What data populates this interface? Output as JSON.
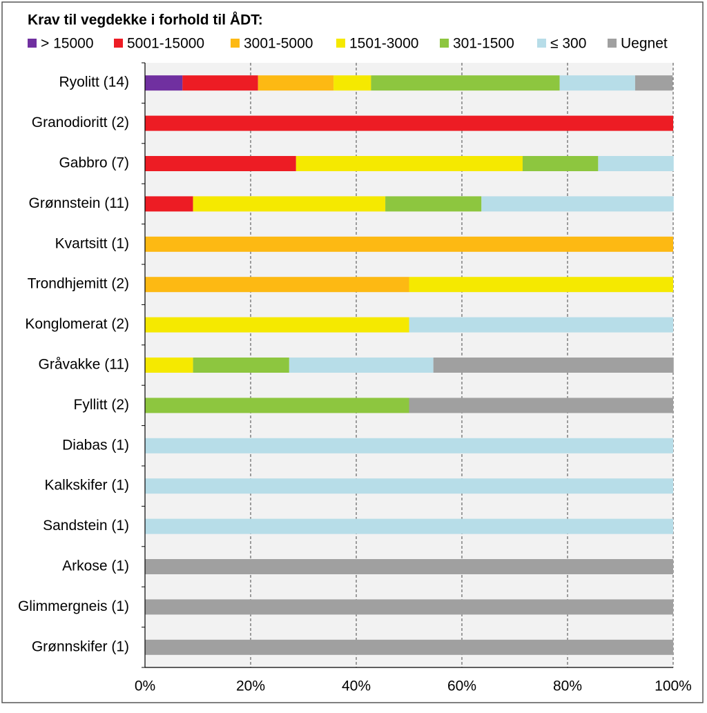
{
  "chart_data": {
    "type": "stacked-barh",
    "title": "Krav til vegdekke i forhold til ÅDT:",
    "categories": [
      "Ryolitt (14)",
      "Granodioritt (2)",
      "Gabbro (7)",
      "Grønnstein (11)",
      "Kvartsitt (1)",
      "Trondhjemitt (2)",
      "Konglomerat (2)",
      "Gråvakke (11)",
      "Fyllitt (2)",
      "Diabas (1)",
      "Kalkskifer (1)",
      "Sandstein (1)",
      "Arkose (1)",
      "Glimmergneis (1)",
      "Grønnskifer (1)"
    ],
    "series": [
      {
        "name": "> 15000",
        "color": "#7030a0",
        "values": [
          7.1,
          0,
          0,
          0,
          0,
          0,
          0,
          0,
          0,
          0,
          0,
          0,
          0,
          0,
          0
        ]
      },
      {
        "name": "5001-15000",
        "color": "#ed1c24",
        "values": [
          14.3,
          100,
          28.6,
          9.1,
          0,
          0,
          0,
          0,
          0,
          0,
          0,
          0,
          0,
          0,
          0
        ]
      },
      {
        "name": "3001-5000",
        "color": "#fdb913",
        "values": [
          14.3,
          0,
          0,
          0,
          100,
          50,
          0,
          0,
          0,
          0,
          0,
          0,
          0,
          0,
          0
        ]
      },
      {
        "name": "1501-3000",
        "color": "#f5e900",
        "values": [
          7.1,
          0,
          42.9,
          36.4,
          0,
          50,
          50,
          9.1,
          0,
          0,
          0,
          0,
          0,
          0,
          0
        ]
      },
      {
        "name": "301-1500",
        "color": "#8dc63f",
        "values": [
          35.7,
          0,
          14.3,
          18.2,
          0,
          0,
          0,
          18.2,
          50,
          0,
          0,
          0,
          0,
          0,
          0
        ]
      },
      {
        "name": "≤ 300",
        "color": "#b7dde8",
        "values": [
          14.3,
          0,
          14.3,
          36.4,
          0,
          0,
          50,
          27.3,
          0,
          100,
          100,
          100,
          0,
          0,
          0
        ]
      },
      {
        "name": "Uegnet",
        "color": "#a0a0a0",
        "values": [
          7.1,
          0,
          0,
          0,
          0,
          0,
          0,
          45.5,
          50,
          0,
          0,
          0,
          100,
          100,
          100
        ]
      }
    ],
    "xlim": [
      0,
      100
    ],
    "xticks": [
      {
        "value": 0,
        "label": "0%"
      },
      {
        "value": 20,
        "label": "20%"
      },
      {
        "value": 40,
        "label": "40%"
      },
      {
        "value": 60,
        "label": "60%"
      },
      {
        "value": 80,
        "label": "80%"
      },
      {
        "value": 100,
        "label": "100%"
      }
    ],
    "grid": true
  }
}
